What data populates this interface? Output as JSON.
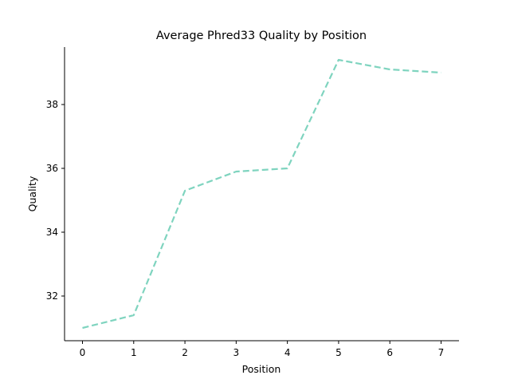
{
  "chart_data": {
    "type": "line",
    "title": "Average Phred33 Quality by Position",
    "xlabel": "Position",
    "ylabel": "Quality",
    "x": [
      0,
      1,
      2,
      3,
      4,
      5,
      6,
      7
    ],
    "series": [
      {
        "values": [
          31.0,
          31.4,
          35.3,
          35.9,
          36.0,
          39.4,
          39.1,
          39.0
        ],
        "color": "#7fd4bf",
        "line_style": "dashed"
      }
    ],
    "xticks": [
      0,
      1,
      2,
      3,
      4,
      5,
      6,
      7
    ],
    "yticks": [
      32,
      34,
      36,
      38
    ],
    "xlim": [
      -0.35,
      7.35
    ],
    "ylim": [
      30.6,
      39.8
    ],
    "grid": false,
    "spines": "left-bottom"
  }
}
